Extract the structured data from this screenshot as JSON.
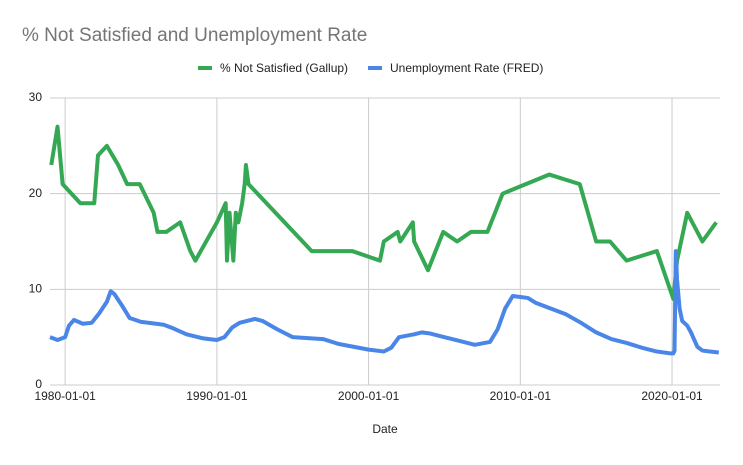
{
  "chart_data": {
    "type": "line",
    "title": "% Not Satisfied and Unemployment Rate",
    "x_label": "Date",
    "xlim": [
      "1979-01-01",
      "2023-03-01"
    ],
    "xticks": [
      "1980-01-01",
      "1990-01-01",
      "2000-01-01",
      "2010-01-01",
      "2020-01-01"
    ],
    "ylim": [
      0,
      30
    ],
    "yticks": [
      0,
      10,
      20,
      30
    ],
    "grid": true,
    "legend": "top",
    "series": [
      {
        "name": "% Not Satisfied (Gallup)",
        "color": "#34a853",
        "x": [
          "1979-02-01",
          "1979-07-01",
          "1979-11-01",
          "1981-01-01",
          "1981-12-01",
          "1982-03-01",
          "1982-10-01",
          "1983-07-01",
          "1984-02-01",
          "1984-12-01",
          "1985-11-01",
          "1986-02-01",
          "1986-09-01",
          "1987-08-01",
          "1988-04-01",
          "1988-08-01",
          "1990-01-01",
          "1990-08-01",
          "1990-09-01",
          "1990-11-01",
          "1991-02-01",
          "1991-04-01",
          "1991-06-01",
          "1991-09-01",
          "1991-11-01",
          "1991-12-01",
          "1992-02-01",
          "1996-04-01",
          "1998-12-01",
          "2000-10-01",
          "2001-01-01",
          "2001-12-01",
          "2002-02-01",
          "2002-12-01",
          "2003-01-01",
          "2003-12-01",
          "2004-12-01",
          "2005-11-01",
          "2006-10-01",
          "2007-11-01",
          "2008-11-01",
          "2011-12-01",
          "2013-12-01",
          "2015-01-01",
          "2015-12-01",
          "2017-01-01",
          "2019-01-01",
          "2020-02-01",
          "2020-05-01",
          "2021-01-01",
          "2022-01-01",
          "2022-12-01"
        ],
        "values": [
          23,
          27,
          21,
          19,
          19,
          24,
          25,
          23,
          21,
          21,
          18,
          16,
          16,
          17,
          14,
          13,
          17,
          19,
          13,
          18,
          13,
          18,
          17,
          19,
          21,
          23,
          21,
          14,
          14,
          13,
          15,
          16,
          15,
          17,
          15,
          12,
          16,
          15,
          16,
          16,
          20,
          22,
          21,
          15,
          15,
          13,
          14,
          9,
          13,
          18,
          15,
          17
        ]
      },
      {
        "name": "Unemployment Rate (FRED)",
        "color": "#4a86e8",
        "x": [
          "1979-01-01",
          "1979-07-01",
          "1980-01-01",
          "1980-04-01",
          "1980-08-01",
          "1981-03-01",
          "1981-10-01",
          "1982-04-01",
          "1982-10-01",
          "1983-01-01",
          "1983-04-01",
          "1983-10-01",
          "1984-04-01",
          "1985-01-01",
          "1986-01-01",
          "1986-07-01",
          "1987-01-01",
          "1988-01-01",
          "1989-01-01",
          "1989-07-01",
          "1990-01-01",
          "1990-07-01",
          "1991-01-01",
          "1991-07-01",
          "1992-07-01",
          "1993-01-01",
          "1994-01-01",
          "1995-01-01",
          "1996-01-01",
          "1997-01-01",
          "1998-01-01",
          "1999-01-01",
          "2000-01-01",
          "2001-01-01",
          "2001-07-01",
          "2002-01-01",
          "2003-01-01",
          "2003-07-01",
          "2004-01-01",
          "2005-01-01",
          "2006-01-01",
          "2007-01-01",
          "2008-01-01",
          "2008-07-01",
          "2009-01-01",
          "2009-07-01",
          "2010-01-01",
          "2010-07-01",
          "2011-01-01",
          "2012-01-01",
          "2013-01-01",
          "2014-01-01",
          "2015-01-01",
          "2016-01-01",
          "2017-01-01",
          "2018-01-01",
          "2019-01-01",
          "2019-12-01",
          "2020-02-01",
          "2020-03-01",
          "2020-04-01",
          "2020-05-01",
          "2020-07-01",
          "2020-09-01",
          "2021-01-01",
          "2021-04-01",
          "2021-09-01",
          "2022-01-01",
          "2022-07-01",
          "2023-02-01"
        ],
        "values": [
          5.0,
          4.7,
          5.0,
          6.2,
          6.8,
          6.4,
          6.5,
          7.5,
          8.7,
          9.8,
          9.5,
          8.3,
          7.0,
          6.6,
          6.4,
          6.3,
          6.0,
          5.3,
          4.9,
          4.8,
          4.7,
          5.0,
          6.0,
          6.5,
          6.9,
          6.7,
          5.8,
          5.0,
          4.9,
          4.8,
          4.3,
          4.0,
          3.7,
          3.5,
          3.9,
          5.0,
          5.3,
          5.5,
          5.4,
          5.0,
          4.6,
          4.2,
          4.5,
          5.8,
          8.0,
          9.3,
          9.2,
          9.1,
          8.6,
          8.0,
          7.4,
          6.5,
          5.5,
          4.8,
          4.4,
          3.9,
          3.5,
          3.3,
          3.3,
          3.6,
          14.0,
          11.0,
          8.0,
          6.7,
          6.2,
          5.5,
          4.0,
          3.6,
          3.5,
          3.4
        ]
      }
    ]
  }
}
